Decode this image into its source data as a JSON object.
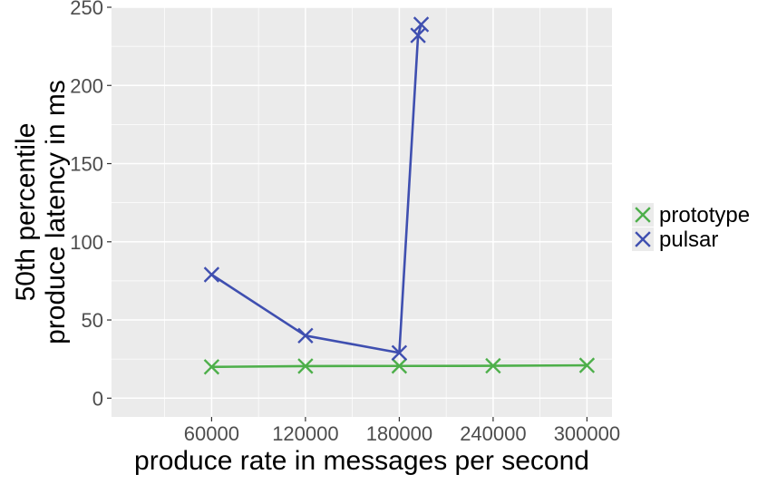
{
  "chart_data": {
    "type": "line",
    "title": "",
    "xlabel": "produce rate in messages per second",
    "ylabel_lines": [
      "50th percentile",
      "produce latency in ms"
    ],
    "xlim": [
      -4000,
      316000
    ],
    "ylim": [
      -12,
      250
    ],
    "x_ticks": [
      60000,
      120000,
      180000,
      240000,
      300000
    ],
    "y_ticks": [
      0,
      50,
      100,
      150,
      200,
      250
    ],
    "grid": true,
    "legend_position": "right",
    "series": [
      {
        "name": "prototype",
        "color": "#4daf4a",
        "marker": "x",
        "points": [
          {
            "x": 60000,
            "y": 20
          },
          {
            "x": 120000,
            "y": 20.5
          },
          {
            "x": 180000,
            "y": 20.6
          },
          {
            "x": 240000,
            "y": 20.7
          },
          {
            "x": 300000,
            "y": 21
          }
        ]
      },
      {
        "name": "pulsar",
        "color": "#3f4fb0",
        "marker": "x",
        "points": [
          {
            "x": 60000,
            "y": 79
          },
          {
            "x": 120000,
            "y": 40
          },
          {
            "x": 180000,
            "y": 29
          },
          {
            "x": 192000,
            "y": 232
          },
          {
            "x": 194000,
            "y": 239
          }
        ]
      }
    ]
  }
}
